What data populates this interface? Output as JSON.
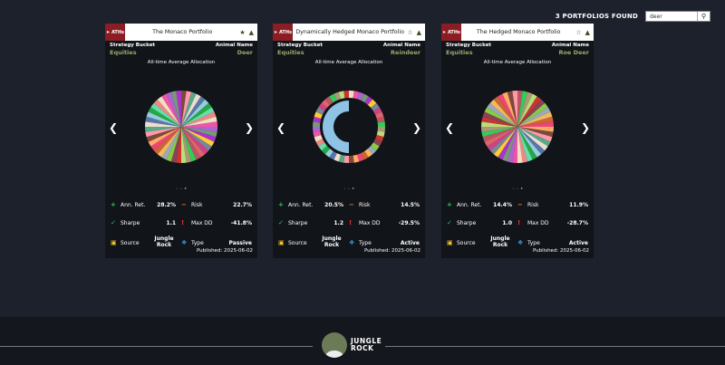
{
  "header": {
    "found": "3 PORTFOLIOS FOUND",
    "search_value": "deer",
    "search_icon": "search-icon"
  },
  "labels": {
    "strategy": "Strategy Bucket",
    "animal": "Animal Name",
    "alloc": "All-time Average Allocation",
    "ann": "Ann. Ret.",
    "risk": "Risk",
    "sharpe": "Sharpe",
    "maxdd": "Max DD",
    "source": "Source",
    "type": "Type",
    "badge": "ATHs"
  },
  "cards": [
    {
      "title": "The Monaco Portfolio",
      "strategy": "Equities",
      "animal": "Deer",
      "ann": "28.2%",
      "risk": "22.7%",
      "sharpe": "1.1",
      "maxdd": "-41.8%",
      "source": "Jungle Rock",
      "type": "Passive",
      "published": "Published: 2025-06-02",
      "starred": true,
      "chart": "pie"
    },
    {
      "title": "Dynamically Hedged Monaco Portfolio",
      "strategy": "Equities",
      "animal": "Reindeer",
      "ann": "20.5%",
      "risk": "14.5%",
      "sharpe": "1.2",
      "maxdd": "-29.5%",
      "source": "Jungle Rock",
      "type": "Active",
      "published": "Published: 2025-06-02",
      "starred": false,
      "chart": "donut",
      "inner_fraction": 0.5
    },
    {
      "title": "The Hedged Monaco Portfolio",
      "strategy": "Equities",
      "animal": "Roe Deer",
      "ann": "14.4%",
      "risk": "11.9%",
      "sharpe": "1.0",
      "maxdd": "-28.7%",
      "source": "Jungle Rock",
      "type": "Active",
      "published": "Published: 2025-06-02",
      "starred": false,
      "chart": "pie"
    }
  ],
  "palette": [
    "#7c4a3a",
    "#a3c",
    "#f4b860",
    "#f0e0c0",
    "#c33",
    "#9cd",
    "#b56",
    "#f9a",
    "#fc3",
    "#c63",
    "#e5a",
    "#845",
    "#2a4",
    "#3c5",
    "#5a8",
    "#789",
    "#e47",
    "#a6c",
    "#8c4",
    "#6da",
    "#a97",
    "#edc",
    "#c48",
    "#fa6",
    "#797",
    "#9ab",
    "#e88",
    "#bd7",
    "#57a",
    "#d66"
  ],
  "footer": {
    "brand": "JUNGLE ROCK",
    "brand_l1": "JUNGLE",
    "brand_l2": "ROCK"
  }
}
